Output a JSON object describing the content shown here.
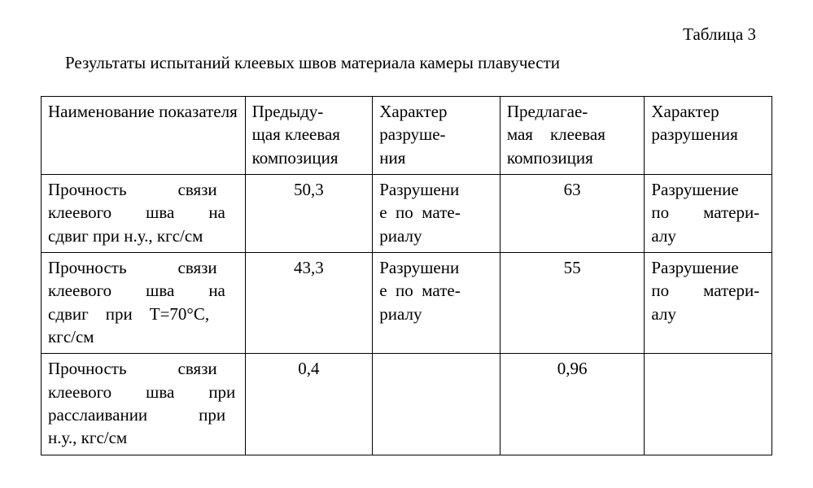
{
  "table_label": "Таблица 3",
  "caption": "Результаты испытаний клеевых швов материала камеры плавучести",
  "headers": {
    "c1": "Наименование показателя",
    "c2_l1": "Предыду-",
    "c2_l2": "щая клеевая",
    "c2_l3": "композиция",
    "c3_l1": "Характер",
    "c3_l2": "разруше-",
    "c3_l3": "ния",
    "c4_l1": "Предлагае-",
    "c4_l2": "мая клеевая",
    "c4_l3": "композиция",
    "c5_l1": "Характер",
    "c5_l2": "разрушения"
  },
  "rows": {
    "r1": {
      "name_l1": "Прочность   связи",
      "name_l2": "клеевого  шва  на",
      "name_l3": "сдвиг при н.у., кгс/см",
      "prev": "50,3",
      "prev_char_l1": "Разрушени",
      "prev_char_l2": "е  по  мате-",
      "prev_char_l3": "риалу",
      "new": "63",
      "new_char_l1": "Разрушение",
      "new_char_l2": "по  матери-",
      "new_char_l3": "алу"
    },
    "r2": {
      "name_l1": "Прочность   связи",
      "name_l2": "клеевого  шва  на",
      "name_l3": "сдвиг при T=70°С,",
      "name_l4": "кгс/см",
      "prev": "43,3",
      "prev_char_l1": "Разрушени",
      "prev_char_l2": "е  по  мате-",
      "prev_char_l3": "риалу",
      "new": "55",
      "new_char_l1": "Разрушение",
      "new_char_l2": "по  матери-",
      "new_char_l3": "алу"
    },
    "r3": {
      "name_l1": "Прочность   связи",
      "name_l2": "клеевого  шва  при",
      "name_l3": "расслаивании   при",
      "name_l4": "н.у., кгс/см",
      "prev": "0,4",
      "prev_char": "",
      "new": "0,96",
      "new_char": ""
    }
  },
  "style": {
    "font_family": "Times New Roman",
    "font_size_pt": 16,
    "border_color": "#000000",
    "background": "#ffffff",
    "text_color": "#000000"
  }
}
